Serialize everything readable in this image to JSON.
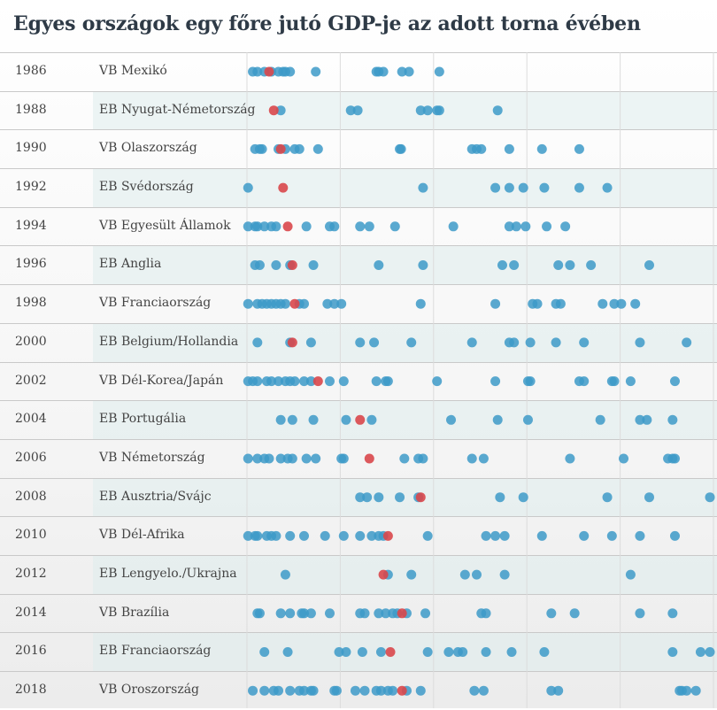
{
  "title": "Egyes országok egy főre jutó GDP-je az adott torna évében",
  "colors": {
    "teams": "#3d9ac8",
    "host": "#d9474b",
    "band": "#dcebeb",
    "grid": "#dcdcdc"
  },
  "chart_data": {
    "type": "scatter",
    "x_domain": [
      0,
      100
    ],
    "grid_x": [
      0,
      20,
      40,
      60,
      80,
      100
    ],
    "rows": [
      {
        "year": "1986",
        "tournament": "VB Mexikó",
        "host": 5.5,
        "values": [
          2,
          3,
          4.5,
          6,
          7.5,
          8.5,
          9,
          10,
          15.5,
          28.5,
          29,
          30,
          34,
          35.5,
          42
        ]
      },
      {
        "year": "1988",
        "tournament": "EB Nyugat-Németország",
        "host": 6.5,
        "values": [
          8,
          23,
          24.5,
          38,
          39.5,
          41.5,
          42,
          54.5
        ]
      },
      {
        "year": "1990",
        "tournament": "VB Olaszország",
        "host": 8,
        "values": [
          2.5,
          3.5,
          4,
          7.5,
          9,
          11,
          12,
          16,
          33.5,
          33.8,
          49,
          50,
          51,
          57,
          64,
          72
        ]
      },
      {
        "year": "1992",
        "tournament": "EB Svédország",
        "host": 8.5,
        "values": [
          1,
          38.5,
          54,
          57,
          60,
          64.5,
          72,
          78
        ]
      },
      {
        "year": "1994",
        "tournament": "VB Egyesült Államok",
        "host": 9.5,
        "values": [
          1,
          2.5,
          3,
          4.5,
          6,
          7,
          13.5,
          18.5,
          19.5,
          25,
          27,
          32.5,
          45,
          57,
          58.5,
          60.5,
          65,
          69
        ]
      },
      {
        "year": "1996",
        "tournament": "EB Anglia",
        "host": 10.5,
        "values": [
          2.5,
          3.5,
          7,
          10,
          15,
          29,
          38.5,
          55.5,
          58,
          67.5,
          70,
          74.5,
          87
        ]
      },
      {
        "year": "1998",
        "tournament": "VB Franciaország",
        "host": 11,
        "values": [
          1,
          3,
          4,
          5,
          6,
          7,
          8,
          9,
          12,
          13,
          18,
          19.5,
          21,
          38,
          54,
          62,
          63,
          67,
          68,
          77,
          79.5,
          81,
          84
        ]
      },
      {
        "year": "2000",
        "tournament": "EB Belgium/Hollandia",
        "host": 10.5,
        "values": [
          3,
          10,
          14.5,
          25,
          28,
          36,
          49,
          57,
          58,
          61.5,
          67,
          73,
          85,
          95
        ]
      },
      {
        "year": "2002",
        "tournament": "VB Dél-Korea/Japán",
        "host": 16,
        "values": [
          1,
          2,
          3,
          5,
          6,
          7.5,
          9,
          10,
          11,
          13,
          14.5,
          18.5,
          21.5,
          28.5,
          30.5,
          31,
          41.5,
          54,
          61,
          61.5,
          72,
          73,
          79,
          79.5,
          83,
          92.5
        ]
      },
      {
        "year": "2004",
        "tournament": "EB Portugália",
        "host": 25,
        "values": [
          8,
          10.5,
          15,
          22,
          27.5,
          44.5,
          54.5,
          61,
          76.5,
          85,
          86.5,
          92
        ]
      },
      {
        "year": "2006",
        "tournament": "VB Németország",
        "host": 27,
        "values": [
          1,
          3,
          4.5,
          5.5,
          8,
          9.5,
          10.5,
          13.5,
          15.5,
          21,
          21.5,
          34.5,
          37.5,
          38.5,
          49,
          51.5,
          70,
          81.5,
          91,
          92,
          92.5
        ]
      },
      {
        "year": "2008",
        "tournament": "EB Ausztria/Svájc",
        "host": 38,
        "values": [
          25,
          26.5,
          29,
          33.5,
          37.5,
          55,
          60,
          78,
          87,
          100
        ]
      },
      {
        "year": "2010",
        "tournament": "VB Dél-Afrika",
        "host": 31,
        "values": [
          1,
          2.5,
          3,
          5,
          6,
          7,
          10,
          13,
          17.5,
          21.5,
          25,
          27.5,
          29,
          30,
          39.5,
          52,
          54,
          56,
          64,
          73,
          79,
          85,
          92.5
        ]
      },
      {
        "year": "2012",
        "tournament": "EB Lengyelo./Ukrajna",
        "host": 30,
        "values": [
          9,
          31,
          36,
          47.5,
          50,
          56,
          83
        ]
      },
      {
        "year": "2014",
        "tournament": "VB Brazília",
        "host": 34,
        "values": [
          3,
          3.5,
          8,
          10,
          12.5,
          13,
          14.5,
          18.5,
          25,
          26,
          29,
          30.5,
          32,
          33,
          35,
          39,
          51,
          52,
          66,
          71,
          85,
          92
        ]
      },
      {
        "year": "2016",
        "tournament": "EB Franciaország",
        "host": 31.5,
        "values": [
          4.5,
          9.5,
          20.5,
          22,
          25.5,
          29.5,
          39.5,
          44,
          46,
          47,
          52,
          57.5,
          64.5,
          92,
          98,
          100
        ]
      },
      {
        "year": "2018",
        "tournament": "VB Oroszország",
        "host": 34,
        "values": [
          2,
          4.5,
          6.5,
          7.5,
          10,
          12,
          13,
          14.5,
          15,
          19.5,
          20,
          24,
          26,
          28.5,
          29.5,
          31,
          32,
          35,
          38,
          49.5,
          51.5,
          66,
          67.5,
          93.5,
          94,
          95,
          97
        ]
      }
    ]
  }
}
